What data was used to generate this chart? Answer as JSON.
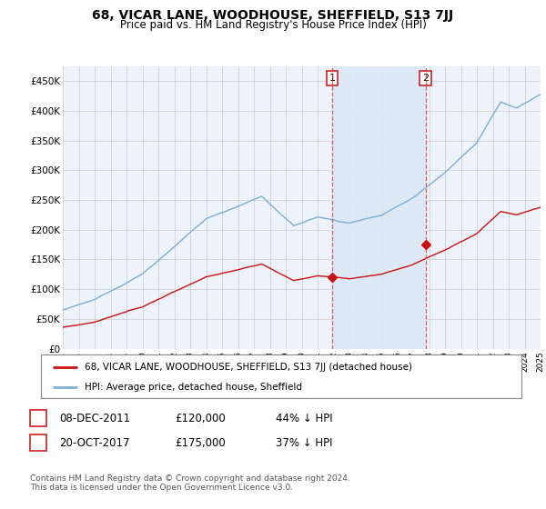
{
  "title": "68, VICAR LANE, WOODHOUSE, SHEFFIELD, S13 7JJ",
  "subtitle": "Price paid vs. HM Land Registry's House Price Index (HPI)",
  "ylim": [
    0,
    475000
  ],
  "yticks": [
    0,
    50000,
    100000,
    150000,
    200000,
    250000,
    300000,
    350000,
    400000,
    450000
  ],
  "ytick_labels": [
    "£0",
    "£50K",
    "£100K",
    "£150K",
    "£200K",
    "£250K",
    "£300K",
    "£350K",
    "£400K",
    "£450K"
  ],
  "sale1_date": 2011.92,
  "sale1_price": 120000,
  "sale1_label": "1",
  "sale2_date": 2017.79,
  "sale2_price": 175000,
  "sale2_label": "2",
  "hpi_color": "#7ab0d4",
  "price_color": "#cc1111",
  "vline_color": "#dd4444",
  "background_color": "#eef2fa",
  "shade_color": "#dce8f5",
  "grid_color": "#cccccc",
  "legend_label1": "68, VICAR LANE, WOODHOUSE, SHEFFIELD, S13 7JJ (detached house)",
  "legend_label2": "HPI: Average price, detached house, Sheffield",
  "table_row1": [
    "1",
    "08-DEC-2011",
    "£120,000",
    "44% ↓ HPI"
  ],
  "table_row2": [
    "2",
    "20-OCT-2017",
    "£175,000",
    "37% ↓ HPI"
  ],
  "footer": "Contains HM Land Registry data © Crown copyright and database right 2024.\nThis data is licensed under the Open Government Licence v3.0.",
  "xstart": 1995,
  "xend": 2025
}
